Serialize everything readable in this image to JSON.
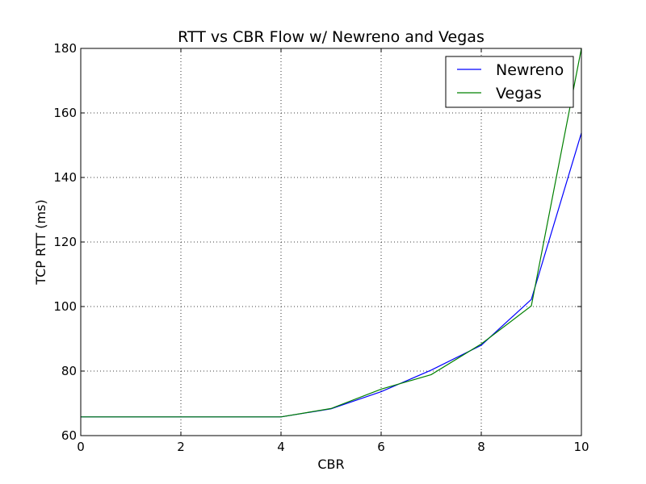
{
  "chart_data": {
    "type": "line",
    "title": "RTT vs CBR Flow w/ Newreno and Vegas",
    "xlabel": "CBR",
    "ylabel": "TCP RTT (ms)",
    "xlim": [
      0,
      10
    ],
    "ylim": [
      60,
      180
    ],
    "xticks": [
      0,
      2,
      4,
      6,
      8,
      10
    ],
    "yticks": [
      60,
      80,
      100,
      120,
      140,
      160,
      180
    ],
    "grid": true,
    "legend_position": "top-right",
    "x": [
      0,
      1,
      2,
      3,
      4,
      5,
      6,
      7,
      8,
      9,
      10
    ],
    "series": [
      {
        "name": "Newreno",
        "color": "#0000ff",
        "values": [
          65.8,
          65.8,
          65.8,
          65.8,
          65.8,
          68.3,
          73.6,
          80.3,
          88.0,
          102.2,
          153.8
        ]
      },
      {
        "name": "Vegas",
        "color": "#008000",
        "values": [
          65.8,
          65.8,
          65.8,
          65.8,
          65.8,
          68.4,
          74.4,
          78.9,
          88.4,
          100.2,
          180.0
        ]
      }
    ]
  }
}
